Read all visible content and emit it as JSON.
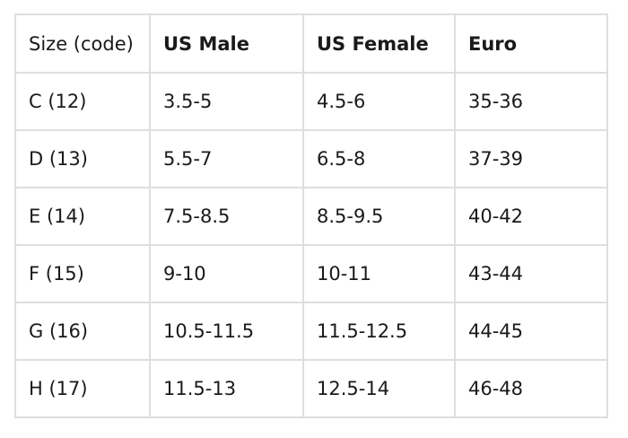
{
  "table": {
    "header": [
      "Size (code)",
      "US Male",
      "US Female",
      "Euro"
    ],
    "rows": [
      [
        "C (12)",
        "3.5-5",
        "4.5-6",
        "35-36"
      ],
      [
        "D (13)",
        "5.5-7",
        "6.5-8",
        "37-39"
      ],
      [
        "E (14)",
        "7.5-8.5",
        "8.5-9.5",
        "40-42"
      ],
      [
        "F (15)",
        "9-10",
        "10-11",
        "43-44"
      ],
      [
        "G (16)",
        "10.5-11.5",
        "11.5-12.5",
        "44-45"
      ],
      [
        "H (17)",
        "11.5-13",
        "12.5-14",
        "46-48"
      ]
    ]
  }
}
